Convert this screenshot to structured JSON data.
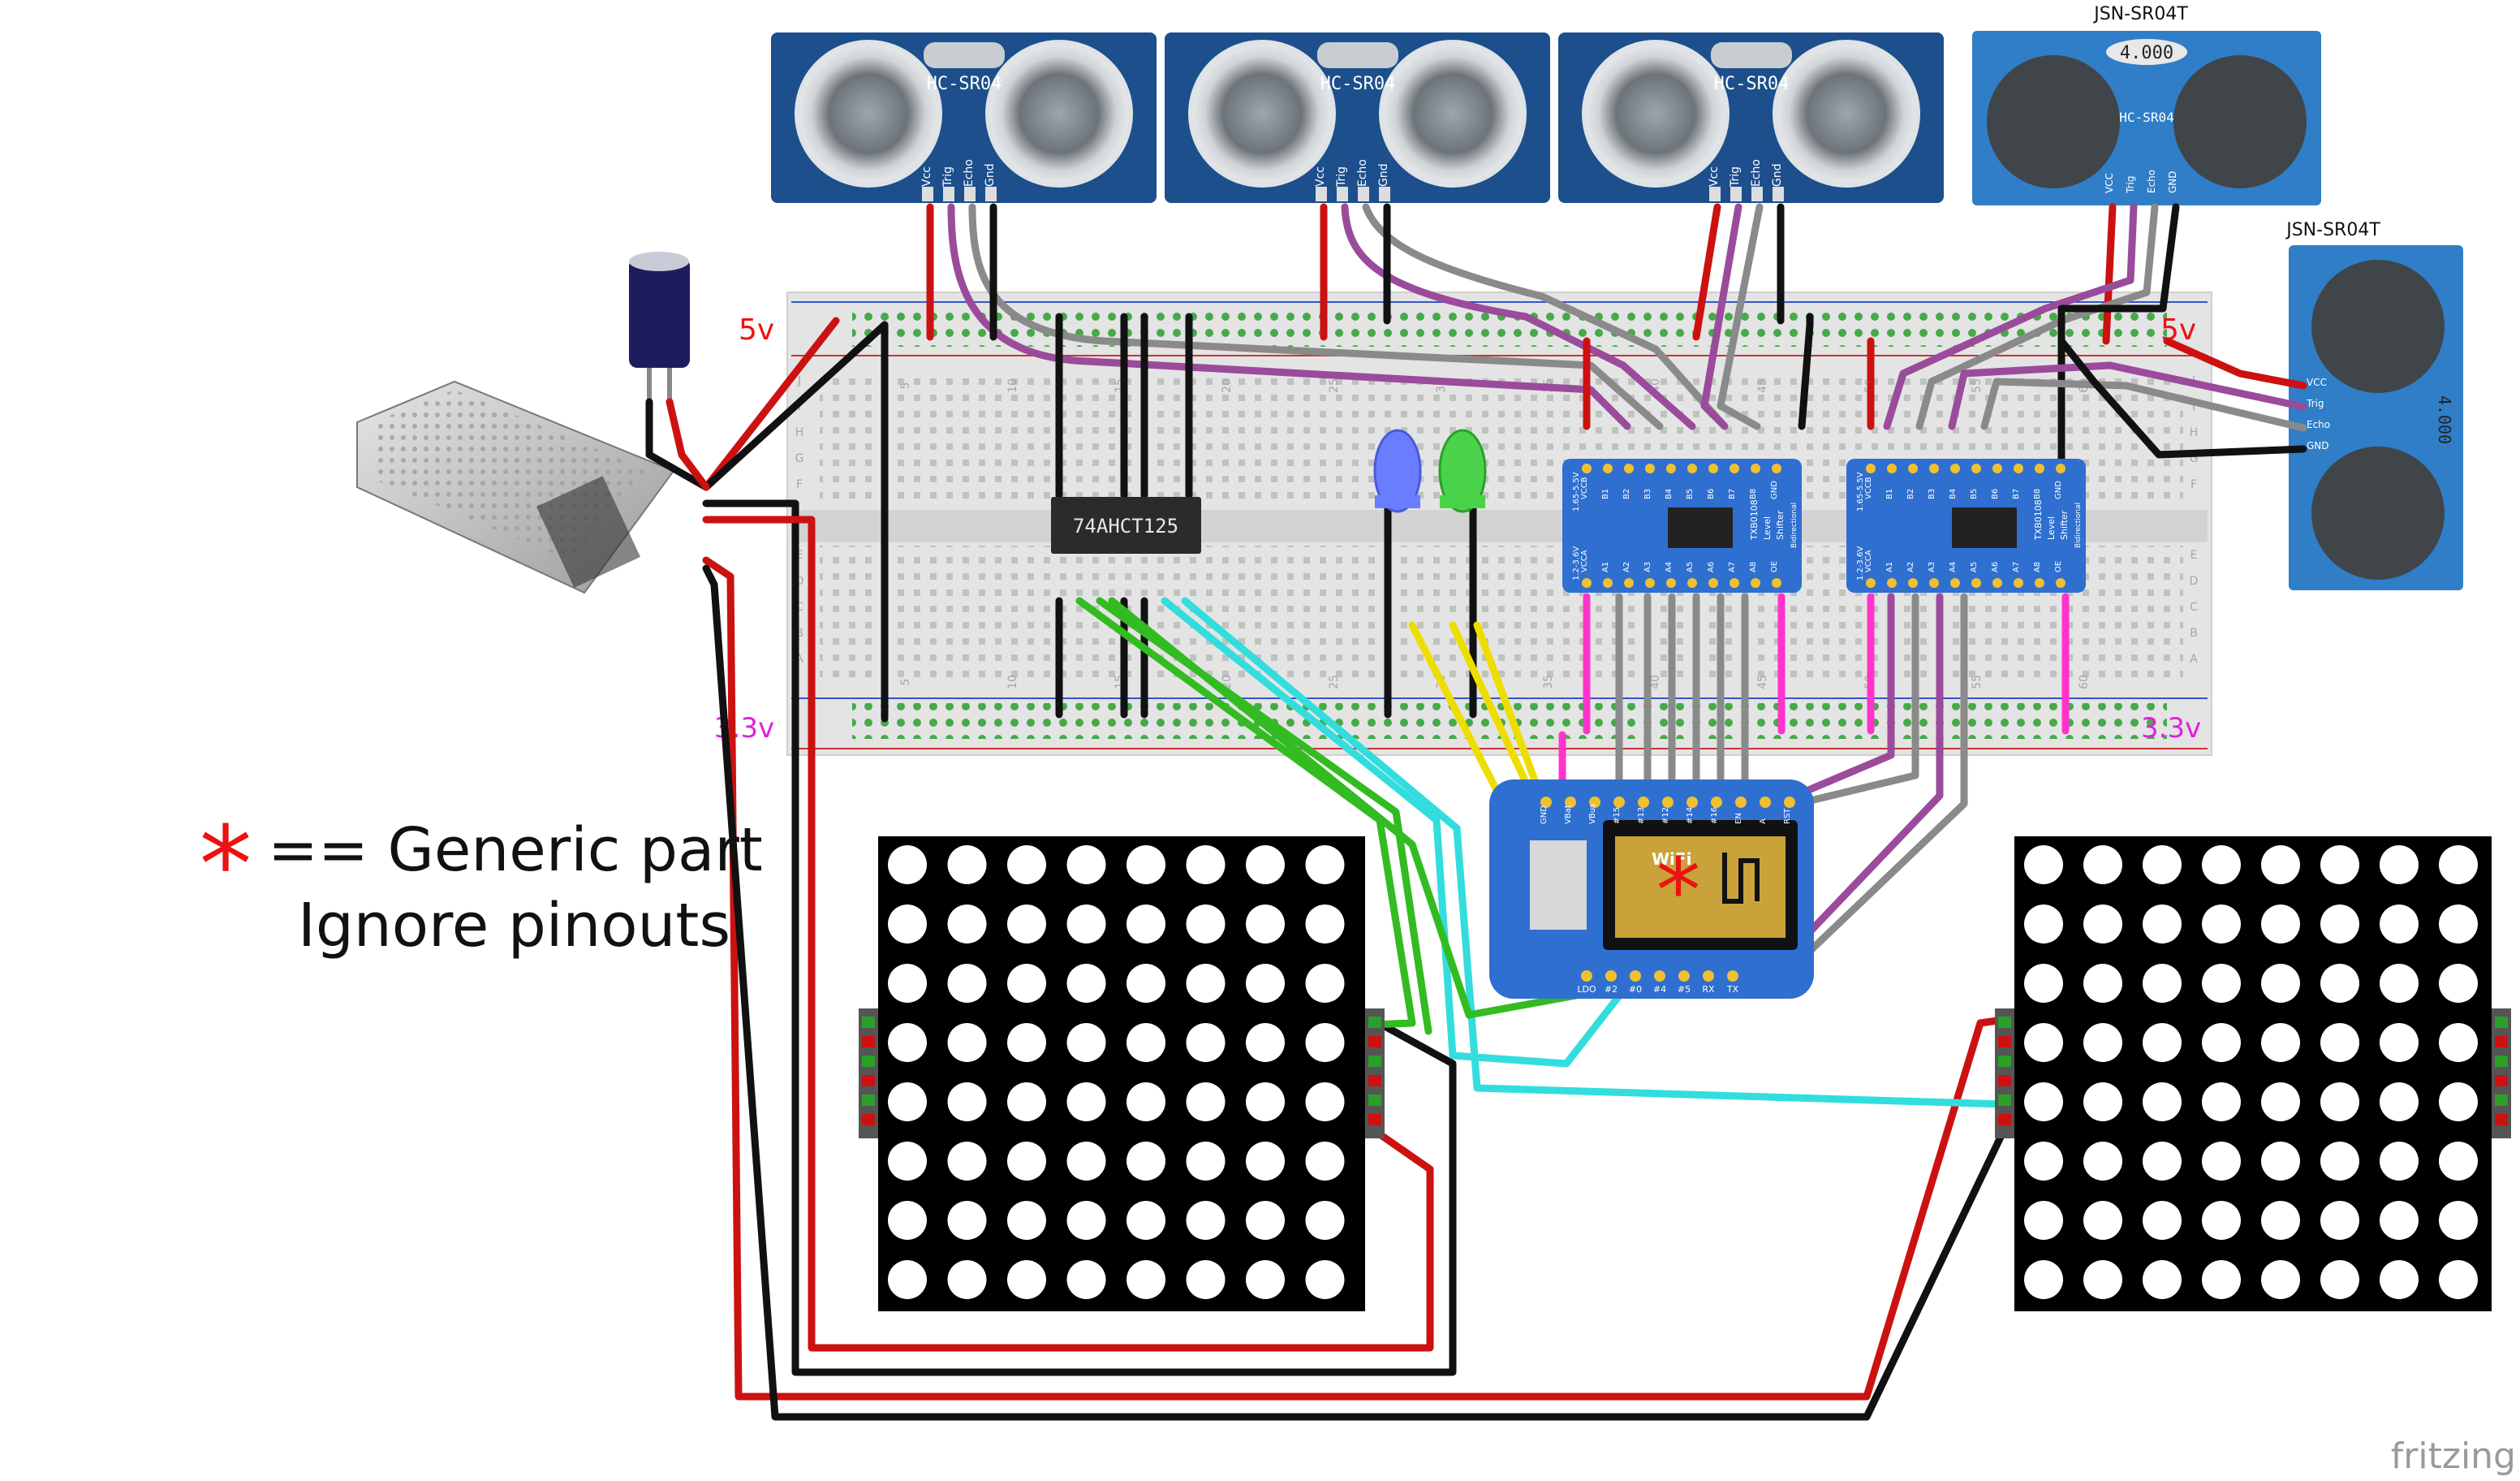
{
  "sensors": {
    "hc_label": "HC-SR04",
    "hc_pins": [
      "Vcc",
      "Trig",
      "Echo",
      "Gnd"
    ],
    "jsn_label": "JSN-SR04T",
    "jsn_board_text": "HC-SR04",
    "jsn_display": "4.000",
    "jsn_pins": [
      "VCC",
      "Trig",
      "Echo",
      "GND"
    ]
  },
  "rails": {
    "five_v_left": "5v",
    "five_v_right": "5v",
    "three_v_left": "3.3v",
    "three_v_right": "3.3v"
  },
  "breadboard": {
    "row_letters_top": [
      "J",
      "I",
      "H",
      "G",
      "F"
    ],
    "row_letters_bottom": [
      "E",
      "D",
      "C",
      "B",
      "A"
    ],
    "column_numbers": [
      "5",
      "10",
      "15",
      "20",
      "25",
      "30",
      "35",
      "40",
      "45",
      "50",
      "55",
      "60"
    ]
  },
  "chip": {
    "label": "74AHCT125"
  },
  "shifter": {
    "top_pins": [
      "VCCB",
      "B1",
      "B2",
      "B3",
      "B4",
      "B5",
      "B6",
      "B7",
      "B8",
      "GND"
    ],
    "bottom_pins": [
      "VCCA",
      "A1",
      "A2",
      "A3",
      "A4",
      "A5",
      "A6",
      "A7",
      "A8",
      "OE"
    ],
    "side_left": "1.2-3.6V",
    "side_right": "1.65-5.5V",
    "text": [
      "TXB0108",
      "Level",
      "Shifter",
      "Bidirectional"
    ]
  },
  "mcu": {
    "top_pins": [
      "GND",
      "VBat",
      "VBus",
      "#15",
      "#13",
      "#12",
      "#14",
      "#16",
      "EN",
      "A",
      "RST"
    ],
    "bottom_pins": [
      "LDO",
      "#2",
      "#0",
      "#4",
      "#5",
      "RX",
      "TX"
    ],
    "wifi_label": "WiFi"
  },
  "legend": {
    "star": "*",
    "line1": "== Generic part",
    "line2": "Ignore pinouts"
  },
  "footer": {
    "brand": "fritzing"
  },
  "colors": {
    "wire_red": "#cc1111",
    "wire_black": "#111111",
    "wire_gray": "#8a8a8a",
    "wire_purple": "#9b4b9b",
    "wire_magenta": "#ff33cc",
    "wire_green": "#33bb22",
    "wire_cyan": "#33dddd",
    "wire_yellow": "#eedd00",
    "sensor_blue": "#1c4f8c",
    "jsn_blue": "#2f7ec7",
    "board_blue": "#2f6fcf",
    "rail_text_red": "#ee1111",
    "rail_text_magenta": "#dd22dd"
  }
}
